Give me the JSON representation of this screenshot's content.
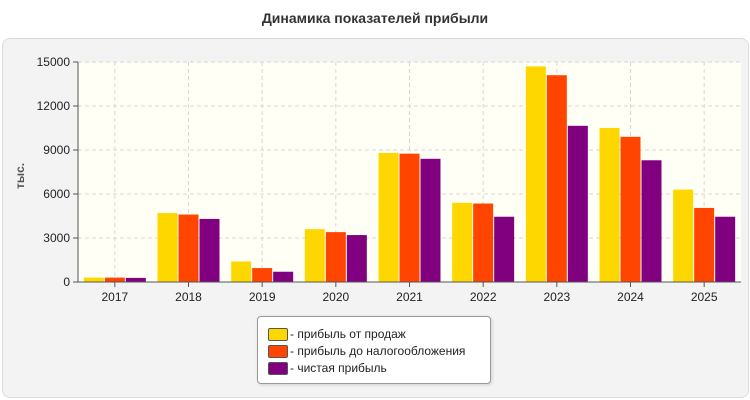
{
  "chart_data": {
    "type": "bar",
    "title": "Динамика показателей прибыли",
    "ylabel": "тыс.",
    "xlabel": "",
    "categories": [
      "2017",
      "2018",
      "2019",
      "2020",
      "2021",
      "2022",
      "2023",
      "2024",
      "2025"
    ],
    "ylim": [
      0,
      15000
    ],
    "yticks": [
      "0",
      "3000",
      "6000",
      "9000",
      "12000",
      "15000"
    ],
    "grid": true,
    "legend_position": "bottom-center",
    "series": [
      {
        "name": "- прибыль от продаж",
        "color": "#ffd700",
        "values": [
          300,
          4700,
          1400,
          3600,
          8800,
          5400,
          14700,
          10500,
          6300
        ]
      },
      {
        "name": "- прибыль до налогообложения",
        "color": "#ff4500",
        "values": [
          300,
          4600,
          950,
          3400,
          8750,
          5350,
          14100,
          9900,
          5050
        ]
      },
      {
        "name": "- чистая прибыль",
        "color": "#800080",
        "values": [
          280,
          4300,
          700,
          3200,
          8400,
          4450,
          10650,
          8300,
          4450
        ]
      }
    ]
  }
}
